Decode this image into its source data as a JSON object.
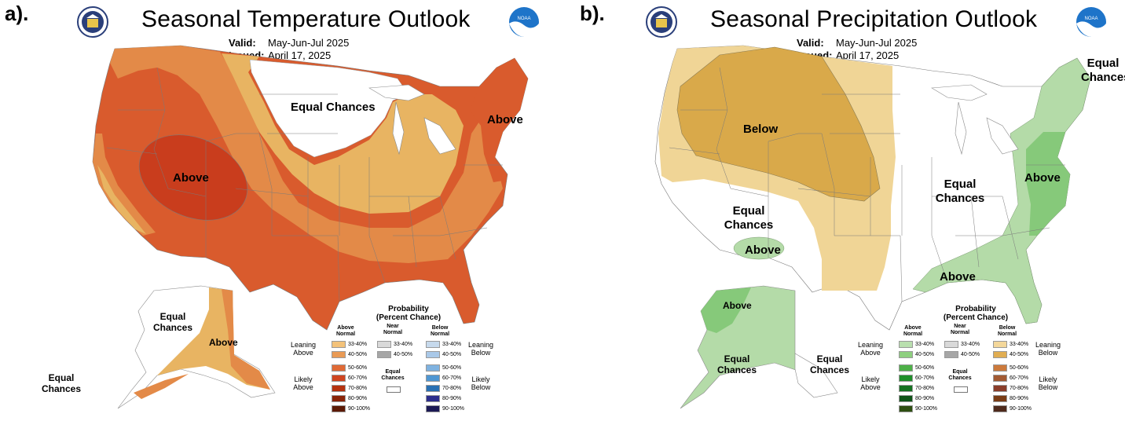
{
  "panels": [
    {
      "label": "a).",
      "title": "Seasonal Temperature Outlook",
      "valid_label": "Valid:",
      "valid_value": "May-Jun-Jul 2025",
      "issued_label": "Issued:",
      "issued_value": "April 17, 2025",
      "seal_left": "Department of Commerce seal",
      "seal_right": "NOAA",
      "regions": [
        "Above",
        "Equal Chances",
        "Above",
        "Equal Chances",
        "Above",
        "Equal Chances"
      ],
      "colors": {
        "b33_40": "#e8b462",
        "b40_50": "#e38a48",
        "b50_60": "#d95b2d",
        "b60_70": "#c93d1d"
      }
    },
    {
      "label": "b).",
      "title": "Seasonal Precipitation Outlook",
      "valid_label": "Valid:",
      "valid_value": "May-Jun-Jul 2025",
      "issued_label": "Issued:",
      "issued_value": "April 17, 2025",
      "seal_left": "Department of Commerce seal",
      "seal_right": "NOAA",
      "regions": [
        "Below",
        "Equal Chances",
        "Equal Chances",
        "Above",
        "Above",
        "Above",
        "Equal Chances",
        "Above",
        "Equal Chances",
        "Equal Chances"
      ],
      "colors": {
        "below33": "#f0d596",
        "below40": "#d9a94a",
        "above33": "#b4dba8",
        "above40": "#86c97a"
      }
    }
  ],
  "legend": {
    "title_line1": "Probability",
    "title_line2": "(Percent Chance)",
    "col_above": "Above Normal",
    "col_near": "Near Normal",
    "col_below": "Below Normal",
    "leaning_above": "Leaning Above",
    "likely_above": "Likely Above",
    "leaning_below": "Leaning Below",
    "likely_below": "Likely Below",
    "equal_chances": "Equal Chances",
    "bins": [
      "33-40%",
      "40-50%",
      "50-60%",
      "60-70%",
      "70-80%",
      "80-90%",
      "90-100%"
    ],
    "near_bins": [
      "33-40%",
      "40-50%"
    ],
    "temp_above_colors": [
      "#f3c27a",
      "#e99a55",
      "#e06a36",
      "#cf4520",
      "#b5320f",
      "#8a2408",
      "#5c1a05"
    ],
    "temp_below_colors": [
      "#c6d9ec",
      "#a9c8e8",
      "#7fb2e0",
      "#4f96d2",
      "#2970b3",
      "#2c2e8c",
      "#1c1a55"
    ],
    "precip_above_colors": [
      "#b9dfae",
      "#8ecf7f",
      "#4db048",
      "#1f8e2a",
      "#157221",
      "#0f5418",
      "#2e4f12"
    ],
    "precip_below_colors": [
      "#f3d79a",
      "#e0ad52",
      "#cc7a3c",
      "#a25a33",
      "#8a3d2a",
      "#7a3c15",
      "#4e2a1c"
    ],
    "near_colors": [
      "#d9d9d9",
      "#a6a6a6"
    ]
  }
}
